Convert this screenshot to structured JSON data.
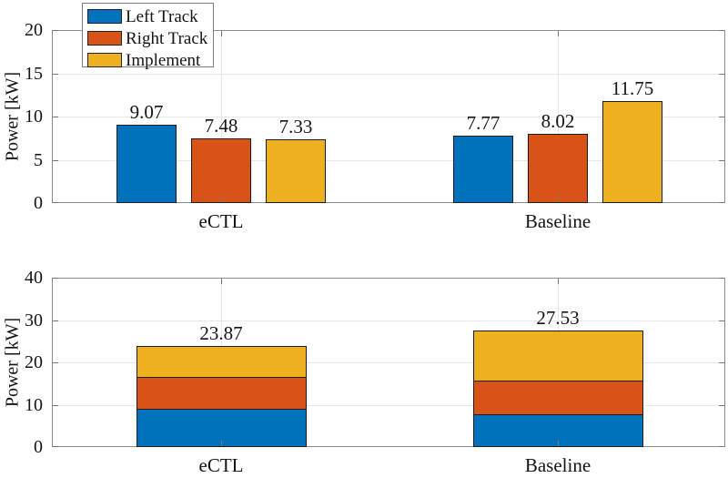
{
  "figure": {
    "background": "#ffffff",
    "axis_color": "#8c8c8c",
    "grid_color": "#e7e7e7",
    "tick_color": "#767676",
    "bar_edge_color": "#1c1c1c",
    "text_color": "#141414"
  },
  "chart_data": [
    {
      "type": "bar",
      "title": "",
      "ylabel": "Power [kW]",
      "xlabel": "",
      "categories": [
        "eCTL",
        "Baseline"
      ],
      "series": [
        {
          "name": "Left Track",
          "color": "#0072BD",
          "values": [
            9.07,
            7.77
          ]
        },
        {
          "name": "Right Track",
          "color": "#D95319",
          "values": [
            7.48,
            8.02
          ]
        },
        {
          "name": "Implement",
          "color": "#EDB120",
          "values": [
            7.33,
            11.75
          ]
        }
      ],
      "value_labels": [
        [
          "9.07",
          "7.48",
          "7.33"
        ],
        [
          "7.77",
          "8.02",
          "11.75"
        ]
      ],
      "ylim": [
        0,
        20
      ],
      "yticks": [
        0,
        5,
        10,
        15,
        20
      ],
      "grid": true,
      "legend": {
        "visible": true,
        "position": "northwest",
        "entries": [
          "Left Track",
          "Right Track",
          "Implement"
        ]
      }
    },
    {
      "type": "bar_stacked",
      "title": "",
      "ylabel": "Power [kW]",
      "xlabel": "",
      "categories": [
        "eCTL",
        "Baseline"
      ],
      "series": [
        {
          "name": "Left Track",
          "color": "#0072BD",
          "values": [
            9.07,
            7.77
          ]
        },
        {
          "name": "Right Track",
          "color": "#D95319",
          "values": [
            7.48,
            8.02
          ]
        },
        {
          "name": "Implement",
          "color": "#EDB120",
          "values": [
            7.33,
            11.75
          ]
        }
      ],
      "total_labels": [
        "23.87",
        "27.53"
      ],
      "ylim": [
        0,
        40
      ],
      "yticks": [
        0,
        10,
        20,
        30,
        40
      ],
      "grid": true,
      "legend": {
        "visible": false
      }
    }
  ]
}
